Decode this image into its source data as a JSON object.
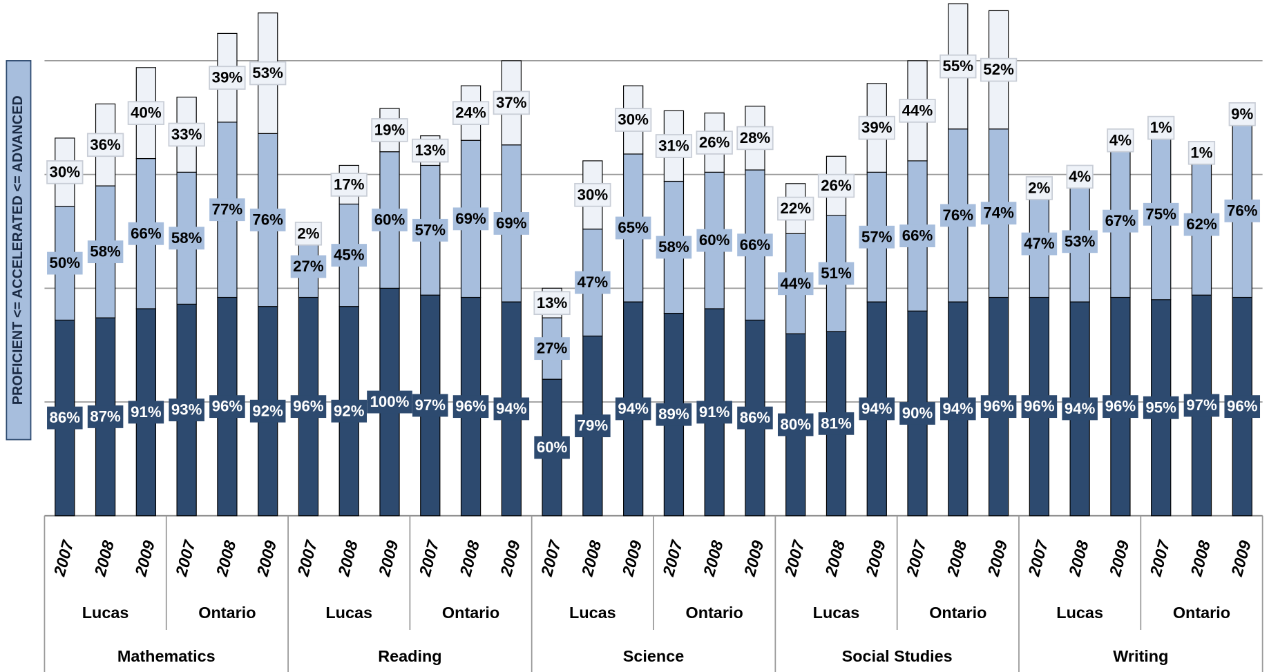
{
  "chart_data": {
    "type": "stacked-bar",
    "y_label": "PROFICIENT <= ACCELERATED <= ADVANCED",
    "categories": [
      "2007",
      "2008",
      "2009",
      "2007",
      "2008",
      "2009",
      "2007",
      "2008",
      "2009",
      "2007",
      "2008",
      "2009",
      "2007",
      "2008",
      "2009",
      "2007",
      "2008",
      "2009",
      "2007",
      "2008",
      "2009",
      "2007",
      "2008",
      "2009",
      "2007",
      "2008",
      "2009",
      "2007",
      "2008",
      "2009"
    ],
    "regions": [
      "Lucas",
      "Ontario",
      "Lucas",
      "Ontario",
      "Lucas",
      "Ontario",
      "Lucas",
      "Ontario",
      "Lucas",
      "Ontario"
    ],
    "subjects": [
      "Mathematics",
      "Reading",
      "Science",
      "Social Studies",
      "Writing"
    ],
    "series": [
      {
        "color": "#2d4a6f",
        "values": [
          86,
          87,
          91,
          93,
          96,
          92,
          96,
          92,
          100,
          97,
          96,
          94,
          60,
          79,
          94,
          89,
          91,
          86,
          80,
          81,
          94,
          90,
          94,
          96,
          96,
          94,
          96,
          95,
          97,
          96
        ],
        "value_labels": [
          "86%",
          "87%",
          "91%",
          "93%",
          "96%",
          "92%",
          "96%",
          "92%",
          "100%",
          "97%",
          "96%",
          "94%",
          "60%",
          "79%",
          "94%",
          "89%",
          "91%",
          "86%",
          "80%",
          "81%",
          "94%",
          "90%",
          "94%",
          "96%",
          "96%",
          "94%",
          "96%",
          "95%",
          "97%",
          "96%"
        ]
      },
      {
        "color": "#a7bedd",
        "values": [
          50,
          58,
          66,
          58,
          77,
          76,
          27,
          45,
          60,
          57,
          69,
          69,
          27,
          47,
          65,
          58,
          60,
          66,
          44,
          51,
          57,
          66,
          76,
          74,
          47,
          53,
          67,
          75,
          62,
          76
        ],
        "value_labels": [
          "50%",
          "58%",
          "66%",
          "58%",
          "77%",
          "76%",
          "27%",
          "45%",
          "60%",
          "57%",
          "69%",
          "69%",
          "27%",
          "47%",
          "65%",
          "58%",
          "60%",
          "66%",
          "44%",
          "51%",
          "57%",
          "66%",
          "76%",
          "74%",
          "47%",
          "53%",
          "67%",
          "75%",
          "62%",
          "76%"
        ]
      },
      {
        "color": "#eef2f8",
        "values": [
          30,
          36,
          40,
          33,
          39,
          53,
          2,
          17,
          19,
          13,
          24,
          37,
          13,
          30,
          30,
          31,
          26,
          28,
          22,
          26,
          39,
          44,
          55,
          52,
          2,
          4,
          4,
          1,
          1,
          9
        ],
        "value_labels": [
          "30%",
          "36%",
          "40%",
          "33%",
          "39%",
          "53%",
          "2%",
          "17%",
          "19%",
          "13%",
          "24%",
          "37%",
          "13%",
          "30%",
          "30%",
          "31%",
          "26%",
          "28%",
          "22%",
          "26%",
          "39%",
          "44%",
          "55%",
          "52%",
          "2%",
          "4%",
          "4%",
          "1%",
          "1%",
          "9%"
        ]
      }
    ],
    "ylim": [
      0,
      200
    ],
    "yticks": [
      0,
      50,
      100,
      150,
      200
    ],
    "grid": true
  }
}
